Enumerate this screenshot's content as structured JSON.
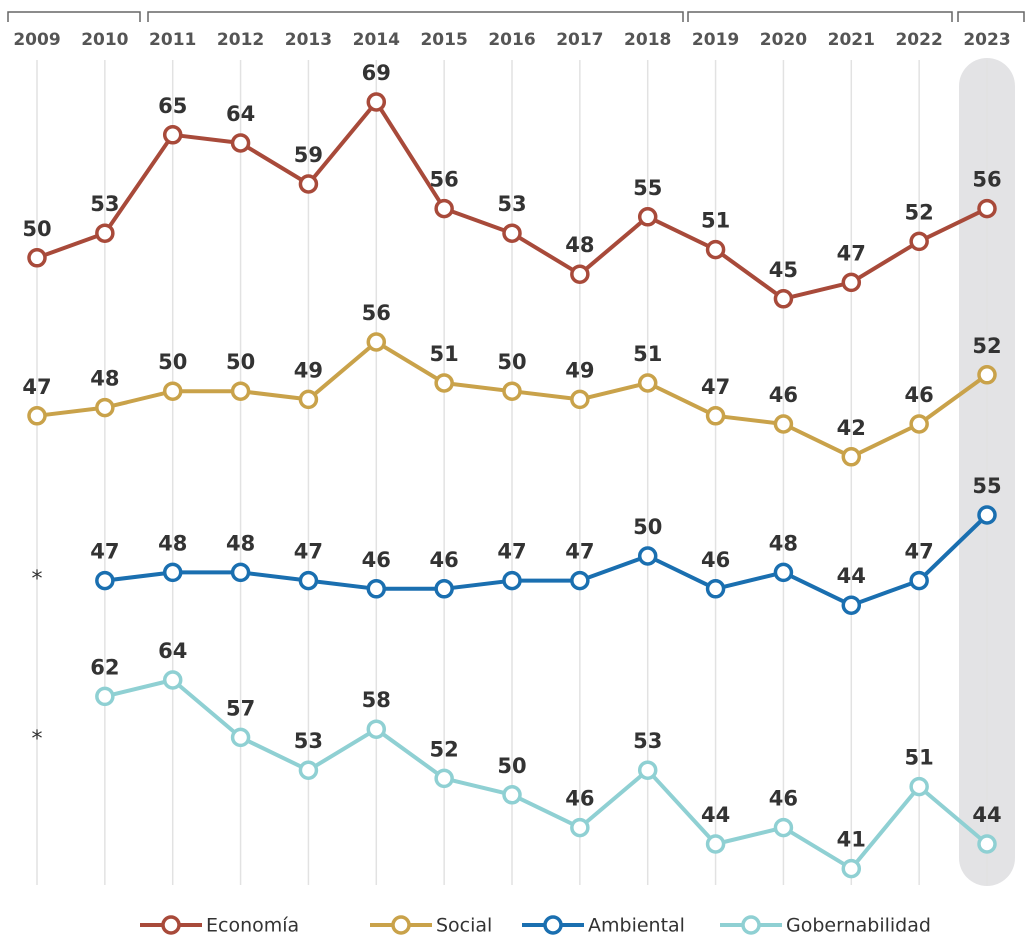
{
  "chart_data": {
    "type": "line",
    "categories": [
      "2009",
      "2010",
      "2011",
      "2012",
      "2013",
      "2014",
      "2015",
      "2016",
      "2017",
      "2018",
      "2019",
      "2020",
      "2021",
      "2022",
      "2023"
    ],
    "series": [
      {
        "name": "Economía",
        "color": "#a84a3a",
        "values": [
          50,
          53,
          65,
          64,
          59,
          69,
          56,
          53,
          48,
          55,
          51,
          45,
          47,
          52,
          56
        ]
      },
      {
        "name": "Social",
        "color": "#c9a24a",
        "values": [
          47,
          48,
          50,
          50,
          49,
          56,
          51,
          50,
          49,
          51,
          47,
          46,
          42,
          46,
          52
        ]
      },
      {
        "name": "Ambiental",
        "color": "#1a6fb0",
        "values": [
          null,
          47,
          48,
          48,
          47,
          46,
          46,
          47,
          47,
          50,
          46,
          48,
          44,
          47,
          55
        ]
      },
      {
        "name": "Gobernabilidad",
        "color": "#8fd0d3",
        "values": [
          null,
          62,
          64,
          57,
          53,
          58,
          52,
          50,
          46,
          53,
          44,
          46,
          41,
          51,
          44
        ]
      }
    ],
    "missing_label": "*"
  }
}
